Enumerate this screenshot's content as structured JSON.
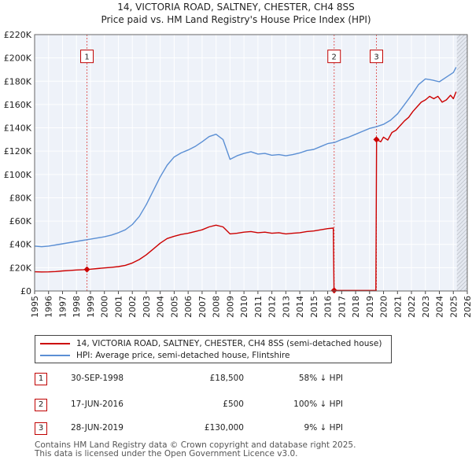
{
  "chart_data": {
    "type": "line",
    "title": "14, VICTORIA ROAD, SALTNEY, CHESTER, CH4 8SS",
    "subtitle": "Price paid vs. HM Land Registry's House Price Index (HPI)",
    "xlim": [
      1995,
      2026
    ],
    "ylim": [
      0,
      220000
    ],
    "x_ticks": [
      1995,
      1996,
      1997,
      1998,
      1999,
      2000,
      2001,
      2002,
      2003,
      2004,
      2005,
      2006,
      2007,
      2008,
      2009,
      2010,
      2011,
      2012,
      2013,
      2014,
      2015,
      2016,
      2017,
      2018,
      2019,
      2020,
      2021,
      2022,
      2023,
      2024,
      2025,
      2026
    ],
    "y_ticks": [
      {
        "value": 0,
        "label": "£0"
      },
      {
        "value": 20000,
        "label": "£20K"
      },
      {
        "value": 40000,
        "label": "£40K"
      },
      {
        "value": 60000,
        "label": "£60K"
      },
      {
        "value": 80000,
        "label": "£80K"
      },
      {
        "value": 100000,
        "label": "£100K"
      },
      {
        "value": 120000,
        "label": "£120K"
      },
      {
        "value": 140000,
        "label": "£140K"
      },
      {
        "value": 160000,
        "label": "£160K"
      },
      {
        "value": 180000,
        "label": "£180K"
      },
      {
        "value": 200000,
        "label": "£200K"
      },
      {
        "value": 220000,
        "label": "£220K"
      }
    ],
    "grid": true,
    "series": [
      {
        "name": "14, VICTORIA ROAD, SALTNEY, CHESTER, CH4 8SS (semi-detached house)",
        "color": "#cc0000",
        "points": [
          [
            1995.0,
            16500
          ],
          [
            1995.5,
            16300
          ],
          [
            1996.0,
            16400
          ],
          [
            1996.5,
            16700
          ],
          [
            1997.0,
            17200
          ],
          [
            1997.5,
            17600
          ],
          [
            1998.0,
            18000
          ],
          [
            1998.5,
            18300
          ],
          [
            1998.75,
            18500
          ],
          [
            1999.0,
            18700
          ],
          [
            1999.5,
            19200
          ],
          [
            2000.0,
            19800
          ],
          [
            2000.5,
            20300
          ],
          [
            2001.0,
            20900
          ],
          [
            2001.5,
            22000
          ],
          [
            2002.0,
            24000
          ],
          [
            2002.5,
            27000
          ],
          [
            2003.0,
            31000
          ],
          [
            2003.5,
            36000
          ],
          [
            2004.0,
            41000
          ],
          [
            2004.5,
            45000
          ],
          [
            2005.0,
            47000
          ],
          [
            2005.5,
            48500
          ],
          [
            2006.0,
            49500
          ],
          [
            2006.5,
            51000
          ],
          [
            2007.0,
            52500
          ],
          [
            2007.5,
            55000
          ],
          [
            2008.0,
            56500
          ],
          [
            2008.5,
            55000
          ],
          [
            2009.0,
            49000
          ],
          [
            2009.5,
            49500
          ],
          [
            2010.0,
            50500
          ],
          [
            2010.5,
            51000
          ],
          [
            2011.0,
            50000
          ],
          [
            2011.5,
            50500
          ],
          [
            2012.0,
            49500
          ],
          [
            2012.5,
            50000
          ],
          [
            2013.0,
            49000
          ],
          [
            2013.5,
            49500
          ],
          [
            2014.0,
            50000
          ],
          [
            2014.5,
            51000
          ],
          [
            2015.0,
            51500
          ],
          [
            2015.5,
            52500
          ],
          [
            2016.0,
            53500
          ],
          [
            2016.4,
            54000
          ],
          [
            2016.45,
            500
          ],
          [
            2016.6,
            500
          ],
          [
            2017.0,
            500
          ],
          [
            2018.0,
            500
          ],
          [
            2019.0,
            500
          ],
          [
            2019.45,
            500
          ],
          [
            2019.5,
            130000
          ],
          [
            2019.8,
            128000
          ],
          [
            2020.0,
            132000
          ],
          [
            2020.3,
            129500
          ],
          [
            2020.6,
            136000
          ],
          [
            2020.9,
            138000
          ],
          [
            2021.2,
            142000
          ],
          [
            2021.5,
            146000
          ],
          [
            2021.8,
            149000
          ],
          [
            2022.1,
            154000
          ],
          [
            2022.4,
            158000
          ],
          [
            2022.7,
            162000
          ],
          [
            2023.0,
            164000
          ],
          [
            2023.3,
            167000
          ],
          [
            2023.6,
            165000
          ],
          [
            2023.9,
            167000
          ],
          [
            2024.2,
            162000
          ],
          [
            2024.5,
            164000
          ],
          [
            2024.8,
            168000
          ],
          [
            2025.0,
            165000
          ],
          [
            2025.2,
            171000
          ]
        ]
      },
      {
        "name": "HPI: Average price, semi-detached house, Flintshire",
        "color": "#5b8fd4",
        "points": [
          [
            1995.0,
            38500
          ],
          [
            1995.5,
            38000
          ],
          [
            1996.0,
            38500
          ],
          [
            1996.5,
            39500
          ],
          [
            1997.0,
            40500
          ],
          [
            1997.5,
            41500
          ],
          [
            1998.0,
            42500
          ],
          [
            1998.5,
            43500
          ],
          [
            1998.75,
            44000
          ],
          [
            1999.0,
            44500
          ],
          [
            1999.5,
            45500
          ],
          [
            2000.0,
            46500
          ],
          [
            2000.5,
            48000
          ],
          [
            2001.0,
            50000
          ],
          [
            2001.5,
            52500
          ],
          [
            2002.0,
            57000
          ],
          [
            2002.5,
            64000
          ],
          [
            2003.0,
            74000
          ],
          [
            2003.5,
            86000
          ],
          [
            2004.0,
            98000
          ],
          [
            2004.5,
            108000
          ],
          [
            2005.0,
            115000
          ],
          [
            2005.5,
            118500
          ],
          [
            2006.0,
            121000
          ],
          [
            2006.5,
            124000
          ],
          [
            2007.0,
            128000
          ],
          [
            2007.5,
            132500
          ],
          [
            2008.0,
            134500
          ],
          [
            2008.5,
            130000
          ],
          [
            2009.0,
            113000
          ],
          [
            2009.5,
            116000
          ],
          [
            2010.0,
            118000
          ],
          [
            2010.5,
            119500
          ],
          [
            2011.0,
            117500
          ],
          [
            2011.5,
            118000
          ],
          [
            2012.0,
            116500
          ],
          [
            2012.5,
            117000
          ],
          [
            2013.0,
            116000
          ],
          [
            2013.5,
            117000
          ],
          [
            2014.0,
            118500
          ],
          [
            2014.5,
            120500
          ],
          [
            2015.0,
            121500
          ],
          [
            2015.5,
            124000
          ],
          [
            2016.0,
            126500
          ],
          [
            2016.5,
            127500
          ],
          [
            2017.0,
            130000
          ],
          [
            2017.5,
            132000
          ],
          [
            2018.0,
            134500
          ],
          [
            2018.5,
            137000
          ],
          [
            2019.0,
            139500
          ],
          [
            2019.5,
            141000
          ],
          [
            2020.0,
            143000
          ],
          [
            2020.5,
            146500
          ],
          [
            2021.0,
            152000
          ],
          [
            2021.5,
            160000
          ],
          [
            2022.0,
            168000
          ],
          [
            2022.5,
            177000
          ],
          [
            2023.0,
            182000
          ],
          [
            2023.5,
            181000
          ],
          [
            2024.0,
            179500
          ],
          [
            2024.5,
            183500
          ],
          [
            2025.0,
            187500
          ],
          [
            2025.2,
            192000
          ]
        ]
      }
    ],
    "transactions": [
      {
        "id": "1",
        "date": "30-SEP-1998",
        "x": 1998.75,
        "price_value": 18500,
        "price": "£18,500",
        "hpi": "58% ↓ HPI",
        "marker": true
      },
      {
        "id": "2",
        "date": "17-JUN-2016",
        "x": 2016.46,
        "price_value": 500,
        "price": "£500",
        "hpi": "100% ↓ HPI",
        "marker": true
      },
      {
        "id": "3",
        "date": "28-JUN-2019",
        "x": 2019.49,
        "price_value": 130000,
        "price": "£130,000",
        "hpi": "9% ↓ HPI",
        "marker": true
      }
    ],
    "label_y_value": 202000,
    "forecast_start": 2025.25
  },
  "legend": {
    "red_label": "14, VICTORIA ROAD, SALTNEY, CHESTER, CH4 8SS (semi-detached house)",
    "blue_label": "HPI: Average price, semi-detached house, Flintshire"
  },
  "footer": {
    "line1": "Contains HM Land Registry data © Crown copyright and database right 2025.",
    "line2": "This data is licensed under the Open Government Licence v3.0."
  }
}
